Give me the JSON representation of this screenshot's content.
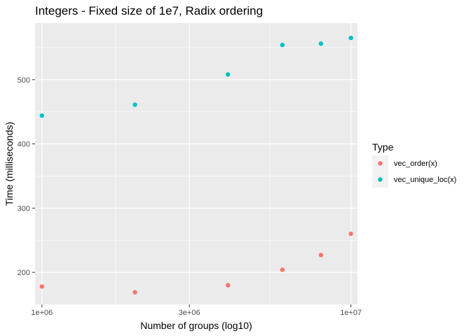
{
  "chart_data": {
    "type": "scatter",
    "title": "Integers - Fixed size of 1e7, Radix ordering",
    "xlabel": "Number of groups (log10)",
    "ylabel": "Time (milliseconds)",
    "x_scale": "log10",
    "xlim": [
      950000,
      10500000
    ],
    "ylim": [
      150,
      588
    ],
    "x_ticks": [
      1000000,
      3000000,
      10000000
    ],
    "x_tick_labels": [
      "1e+06",
      "3e+06",
      "1e+07"
    ],
    "x_minor_ticks": [
      1732000,
      5477000
    ],
    "y_ticks": [
      200,
      300,
      400,
      500
    ],
    "y_tick_labels": [
      "200",
      "300",
      "400",
      "500"
    ],
    "y_minor_ticks": [
      250,
      350,
      450,
      550
    ],
    "grid": true,
    "legend": {
      "title": "Type",
      "position": "right"
    },
    "series": [
      {
        "name": "vec_order(x)",
        "color": "#F8766D",
        "x": [
          1000000,
          2000000,
          4000000,
          6000000,
          8000000,
          10000000
        ],
        "y": [
          178,
          169,
          180,
          204,
          227,
          260
        ]
      },
      {
        "name": "vec_unique_loc(x)",
        "color": "#00BFC4",
        "x": [
          1000000,
          2000000,
          4000000,
          6000000,
          8000000,
          10000000
        ],
        "y": [
          444,
          461,
          508,
          554,
          556,
          565
        ]
      }
    ],
    "colors": {
      "panel_bg": "#EBEBEB",
      "grid": "#FFFFFF",
      "legend_key_bg": "#F2F2F2"
    }
  }
}
